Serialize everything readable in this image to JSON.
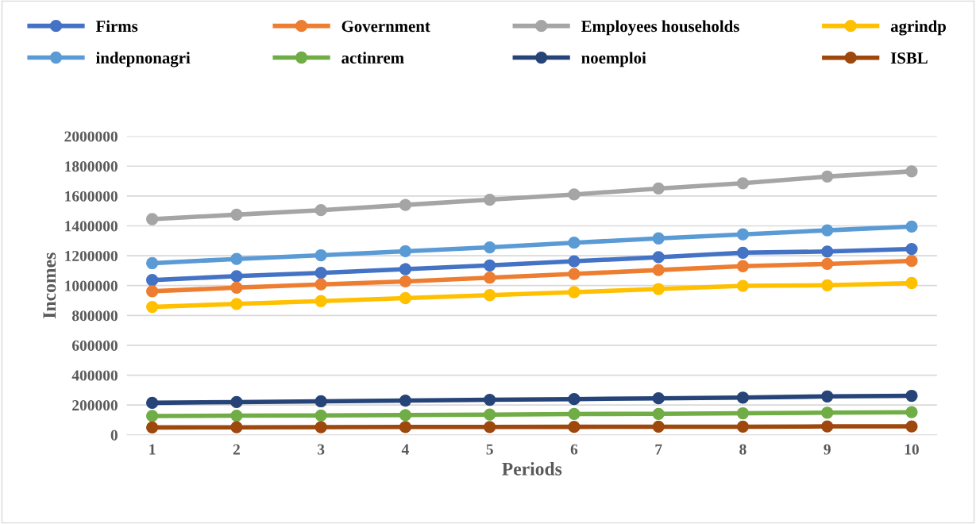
{
  "chart_data": {
    "type": "line",
    "xlabel": "Periods",
    "ylabel": "Incomes",
    "categories": [
      "1",
      "2",
      "3",
      "4",
      "5",
      "6",
      "7",
      "8",
      "9",
      "10"
    ],
    "ylim": [
      0,
      2000000
    ],
    "yticks": [
      0,
      200000,
      400000,
      600000,
      800000,
      1000000,
      1200000,
      1400000,
      1600000,
      1800000,
      2000000
    ],
    "grid": "y",
    "legend": "top",
    "marker": "circle",
    "line_style": "solid",
    "series": [
      {
        "name": "Firms",
        "color": "#4472c4",
        "values": [
          1037000,
          1063000,
          1085000,
          1110000,
          1135000,
          1163000,
          1190000,
          1220000,
          1228000,
          1245000
        ]
      },
      {
        "name": "Government",
        "color": "#ed7d31",
        "values": [
          962000,
          986000,
          1008000,
          1028000,
          1053000,
          1078000,
          1104000,
          1130000,
          1145000,
          1165000
        ]
      },
      {
        "name": "Employees households",
        "color": "#a5a5a5",
        "values": [
          1445000,
          1475000,
          1505000,
          1540000,
          1575000,
          1610000,
          1650000,
          1685000,
          1730000,
          1765000
        ]
      },
      {
        "name": "agrindp",
        "color": "#ffc000",
        "values": [
          857000,
          877000,
          896000,
          916000,
          936000,
          956000,
          977000,
          998000,
          1002000,
          1017000
        ]
      },
      {
        "name": "indepnonagri",
        "color": "#5b9bd5",
        "values": [
          1150000,
          1178000,
          1203000,
          1230000,
          1256000,
          1287000,
          1316000,
          1343000,
          1370000,
          1395000
        ]
      },
      {
        "name": "actinrem",
        "color": "#70ad47",
        "values": [
          127000,
          129000,
          130000,
          133000,
          136000,
          140000,
          141000,
          145000,
          149000,
          152000
        ]
      },
      {
        "name": "noemploi",
        "color": "#264478",
        "values": [
          215000,
          220000,
          225000,
          230000,
          235000,
          240000,
          245000,
          250000,
          258000,
          262000
        ]
      },
      {
        "name": "ISBL",
        "color": "#9e480e",
        "values": [
          50000,
          51000,
          52000,
          53000,
          53000,
          54000,
          55000,
          55000,
          57000,
          57000
        ]
      }
    ]
  }
}
